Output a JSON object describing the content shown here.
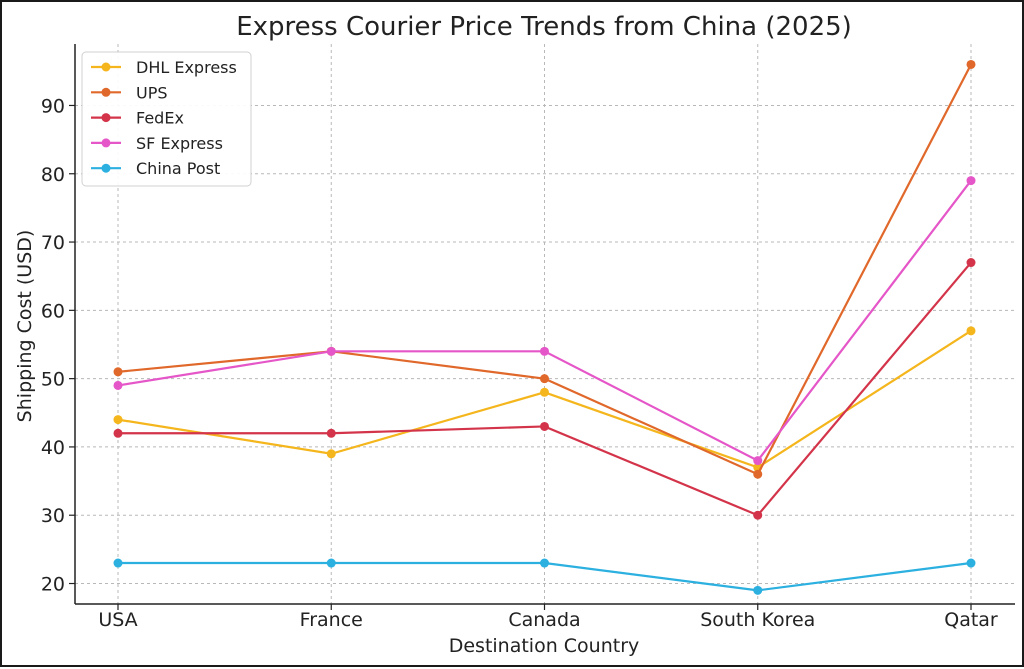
{
  "chart_data": {
    "type": "line",
    "title": "Express Courier Price Trends from China (2025)",
    "xlabel": "Destination Country",
    "ylabel": "Shipping Cost (USD)",
    "categories": [
      "USA",
      "France",
      "Canada",
      "South Korea",
      "Qatar"
    ],
    "ylim": [
      17,
      99
    ],
    "yticks": [
      20,
      30,
      40,
      50,
      60,
      70,
      80,
      90
    ],
    "grid": true,
    "legend_position": "top-left",
    "series": [
      {
        "name": "DHL Express",
        "color": "#f4b61c",
        "values": [
          44,
          39,
          48,
          37,
          57
        ]
      },
      {
        "name": "UPS",
        "color": "#e0682a",
        "values": [
          51,
          54,
          50,
          36,
          96
        ]
      },
      {
        "name": "FedEx",
        "color": "#d3344a",
        "values": [
          42,
          42,
          43,
          30,
          67
        ]
      },
      {
        "name": "SF Express",
        "color": "#e556c8",
        "values": [
          49,
          54,
          54,
          38,
          79
        ]
      },
      {
        "name": "China Post",
        "color": "#2bb0e0",
        "values": [
          23,
          23,
          23,
          19,
          23
        ]
      }
    ]
  }
}
